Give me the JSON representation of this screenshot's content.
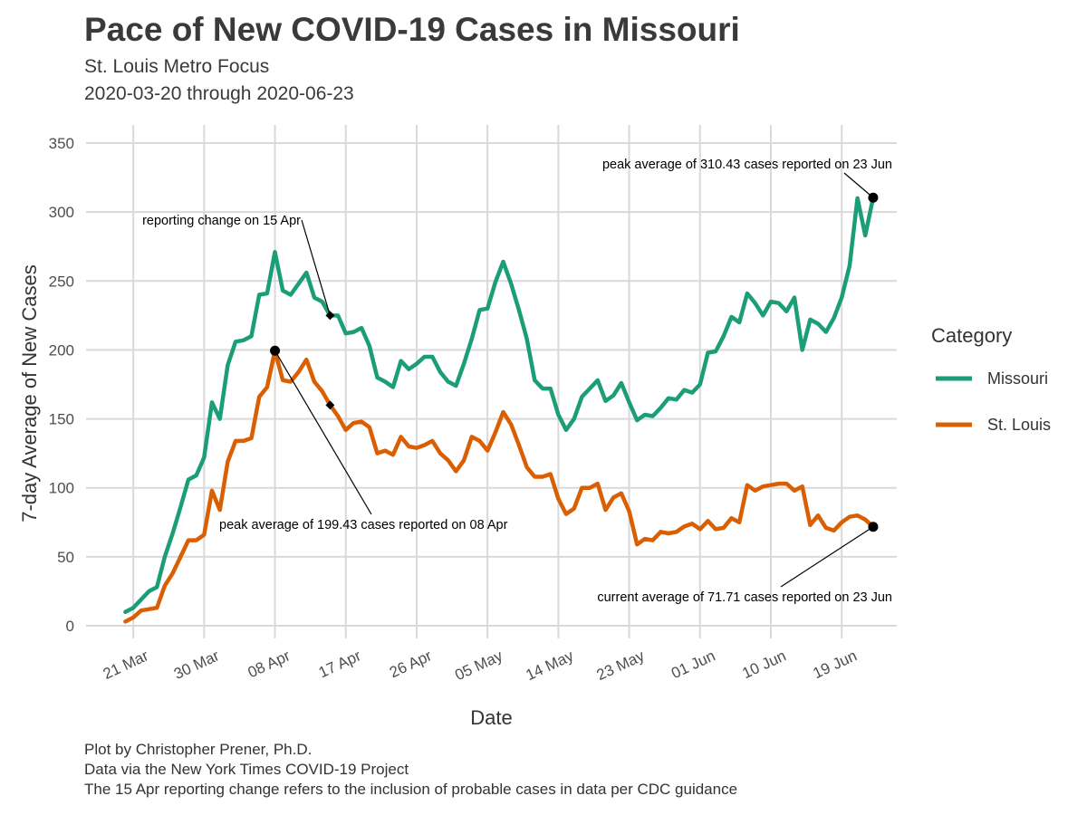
{
  "header": {
    "title": "Pace of New COVID-19 Cases in Missouri",
    "subtitle_line1": "St. Louis Metro Focus",
    "subtitle_line2": "2020-03-20 through 2020-06-23"
  },
  "caption": {
    "line1": "Plot by Christopher Prener, Ph.D.",
    "line2": "Data via the New York Times COVID-19 Project",
    "line3": "The 15 Apr reporting change refers to the inclusion of probable cases in data per CDC guidance"
  },
  "chart_data": {
    "type": "line",
    "title": "Pace of New COVID-19 Cases in Missouri",
    "subtitle": "St. Louis Metro Focus\n2020-03-20 through 2020-06-23",
    "xlabel": "Date",
    "ylabel": "7-day Average of New Cases",
    "ylim": [
      0,
      350
    ],
    "yticks": [
      0,
      50,
      100,
      150,
      200,
      250,
      300,
      350
    ],
    "xlim": [
      "2020-03-15",
      "2020-06-26"
    ],
    "xticks": [
      {
        "date": "2020-03-21",
        "label": "21 Mar"
      },
      {
        "date": "2020-03-30",
        "label": "30 Mar"
      },
      {
        "date": "2020-04-08",
        "label": "08 Apr"
      },
      {
        "date": "2020-04-17",
        "label": "17 Apr"
      },
      {
        "date": "2020-04-26",
        "label": "26 Apr"
      },
      {
        "date": "2020-05-05",
        "label": "05 May"
      },
      {
        "date": "2020-05-14",
        "label": "14 May"
      },
      {
        "date": "2020-05-23",
        "label": "23 May"
      },
      {
        "date": "2020-06-01",
        "label": "01 Jun"
      },
      {
        "date": "2020-06-10",
        "label": "10 Jun"
      },
      {
        "date": "2020-06-19",
        "label": "19 Jun"
      }
    ],
    "grid": true,
    "legend": {
      "title": "Category",
      "position": "right"
    },
    "colors": {
      "Missouri": "#1b9e77",
      "St. Louis": "#d95f02",
      "annotation": "#000000",
      "grid": "#d9d9d9"
    },
    "dates": [
      "2020-03-20",
      "2020-03-21",
      "2020-03-22",
      "2020-03-23",
      "2020-03-24",
      "2020-03-25",
      "2020-03-26",
      "2020-03-27",
      "2020-03-28",
      "2020-03-29",
      "2020-03-30",
      "2020-03-31",
      "2020-04-01",
      "2020-04-02",
      "2020-04-03",
      "2020-04-04",
      "2020-04-05",
      "2020-04-06",
      "2020-04-07",
      "2020-04-08",
      "2020-04-09",
      "2020-04-10",
      "2020-04-11",
      "2020-04-12",
      "2020-04-13",
      "2020-04-14",
      "2020-04-15",
      "2020-04-16",
      "2020-04-17",
      "2020-04-18",
      "2020-04-19",
      "2020-04-20",
      "2020-04-21",
      "2020-04-22",
      "2020-04-23",
      "2020-04-24",
      "2020-04-25",
      "2020-04-26",
      "2020-04-27",
      "2020-04-28",
      "2020-04-29",
      "2020-04-30",
      "2020-05-01",
      "2020-05-02",
      "2020-05-03",
      "2020-05-04",
      "2020-05-05",
      "2020-05-06",
      "2020-05-07",
      "2020-05-08",
      "2020-05-09",
      "2020-05-10",
      "2020-05-11",
      "2020-05-12",
      "2020-05-13",
      "2020-05-14",
      "2020-05-15",
      "2020-05-16",
      "2020-05-17",
      "2020-05-18",
      "2020-05-19",
      "2020-05-20",
      "2020-05-21",
      "2020-05-22",
      "2020-05-23",
      "2020-05-24",
      "2020-05-25",
      "2020-05-26",
      "2020-05-27",
      "2020-05-28",
      "2020-05-29",
      "2020-05-30",
      "2020-05-31",
      "2020-06-01",
      "2020-06-02",
      "2020-06-03",
      "2020-06-04",
      "2020-06-05",
      "2020-06-06",
      "2020-06-07",
      "2020-06-08",
      "2020-06-09",
      "2020-06-10",
      "2020-06-11",
      "2020-06-12",
      "2020-06-13",
      "2020-06-14",
      "2020-06-15",
      "2020-06-16",
      "2020-06-17",
      "2020-06-18",
      "2020-06-19",
      "2020-06-20",
      "2020-06-21",
      "2020-06-22",
      "2020-06-23"
    ],
    "series": [
      {
        "name": "Missouri",
        "values": [
          10,
          13,
          19,
          25,
          28,
          50,
          67,
          86,
          106,
          109,
          122,
          162,
          150,
          189,
          206,
          207,
          210,
          240,
          241,
          271,
          243,
          240,
          248,
          256,
          238,
          235,
          225,
          225,
          212,
          213,
          216,
          203,
          180,
          177,
          173,
          192,
          186,
          190,
          195,
          195,
          184,
          177,
          174,
          190,
          208,
          229,
          230,
          249,
          264,
          248,
          229,
          208,
          178,
          172,
          172,
          153,
          142,
          150,
          166,
          172,
          178,
          163,
          167,
          176,
          162,
          149,
          153,
          152,
          158,
          165,
          164,
          171,
          169,
          175,
          198,
          199,
          210,
          224,
          220,
          241,
          234,
          225,
          235,
          234,
          228,
          238,
          200,
          222,
          219,
          213,
          223,
          238,
          261,
          310,
          283,
          310.43
        ]
      },
      {
        "name": "St. Louis",
        "values": [
          3,
          6,
          11,
          12,
          13,
          29,
          38,
          50,
          62,
          62,
          66,
          98,
          84,
          119,
          134,
          134,
          136,
          166,
          173,
          199.43,
          178,
          177,
          184,
          193,
          177,
          170,
          160,
          152,
          142,
          147,
          148,
          144,
          125,
          127,
          124,
          137,
          130,
          129,
          131,
          134,
          125,
          120,
          112,
          120,
          137,
          134,
          127,
          140,
          155,
          146,
          131,
          115,
          108,
          108,
          110,
          92,
          81,
          85,
          100,
          100,
          103,
          84,
          93,
          96,
          83,
          59,
          63,
          62,
          68,
          67,
          68,
          72,
          74,
          70,
          76,
          70,
          71,
          78,
          75,
          102,
          98,
          101,
          102,
          103,
          103,
          98,
          101,
          73,
          80,
          71,
          69,
          75,
          79,
          80,
          77,
          71.71
        ]
      }
    ],
    "annotations": [
      {
        "label": "peak average of 310.43 cases reported on 23 Jun",
        "series": "Missouri",
        "date": "2020-06-23",
        "value": 310.43
      },
      {
        "label": "reporting change on 15 Apr",
        "series": "Missouri",
        "date": "2020-04-15",
        "value": 225
      },
      {
        "label": "peak average of 199.43 cases reported on 08 Apr",
        "series": "St. Louis",
        "date": "2020-04-08",
        "value": 199.43
      },
      {
        "label": "current average of 71.71 cases reported on 23 Jun",
        "series": "St. Louis",
        "date": "2020-06-23",
        "value": 71.71
      }
    ],
    "reporting_change_marker": {
      "series": "St. Louis",
      "date": "2020-04-15",
      "value": 160
    }
  }
}
